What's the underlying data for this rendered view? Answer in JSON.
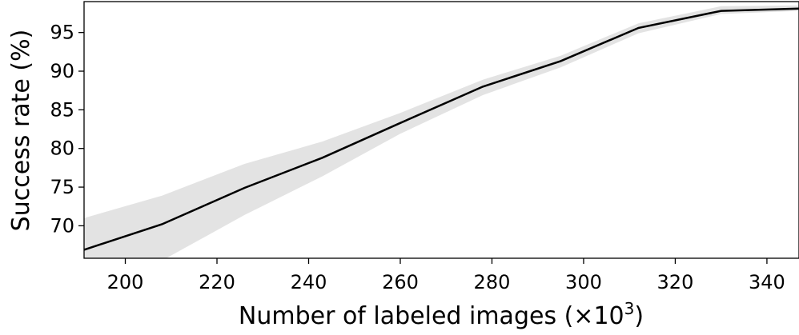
{
  "chart_data": {
    "type": "line",
    "title": "",
    "xlabel": "Number of labeled images (×10",
    "xlabel_superscript": "3",
    "xlabel_close": ")",
    "ylabel": "Success rate (%)",
    "xlim": [
      191,
      347
    ],
    "ylim": [
      65.8,
      99.0
    ],
    "x_ticks": [
      200,
      220,
      240,
      260,
      280,
      300,
      320,
      340
    ],
    "y_ticks": [
      70,
      75,
      80,
      85,
      90,
      95
    ],
    "grid": false,
    "colors": {
      "line": "#000000",
      "band": "#e3e3e3"
    },
    "series": [
      {
        "x": [
          191,
          208,
          226,
          243,
          260,
          278,
          295,
          312,
          330,
          347
        ],
        "mean": [
          66.9,
          70.2,
          74.9,
          78.8,
          83.3,
          88.0,
          91.3,
          95.6,
          97.8,
          98.1
        ],
        "upper": [
          71.0,
          73.9,
          78.0,
          80.9,
          84.6,
          88.9,
          92.0,
          96.2,
          98.4,
          98.5
        ],
        "lower": [
          62.5,
          65.5,
          71.4,
          76.4,
          81.9,
          86.9,
          90.5,
          94.9,
          97.4,
          97.8
        ]
      }
    ]
  }
}
